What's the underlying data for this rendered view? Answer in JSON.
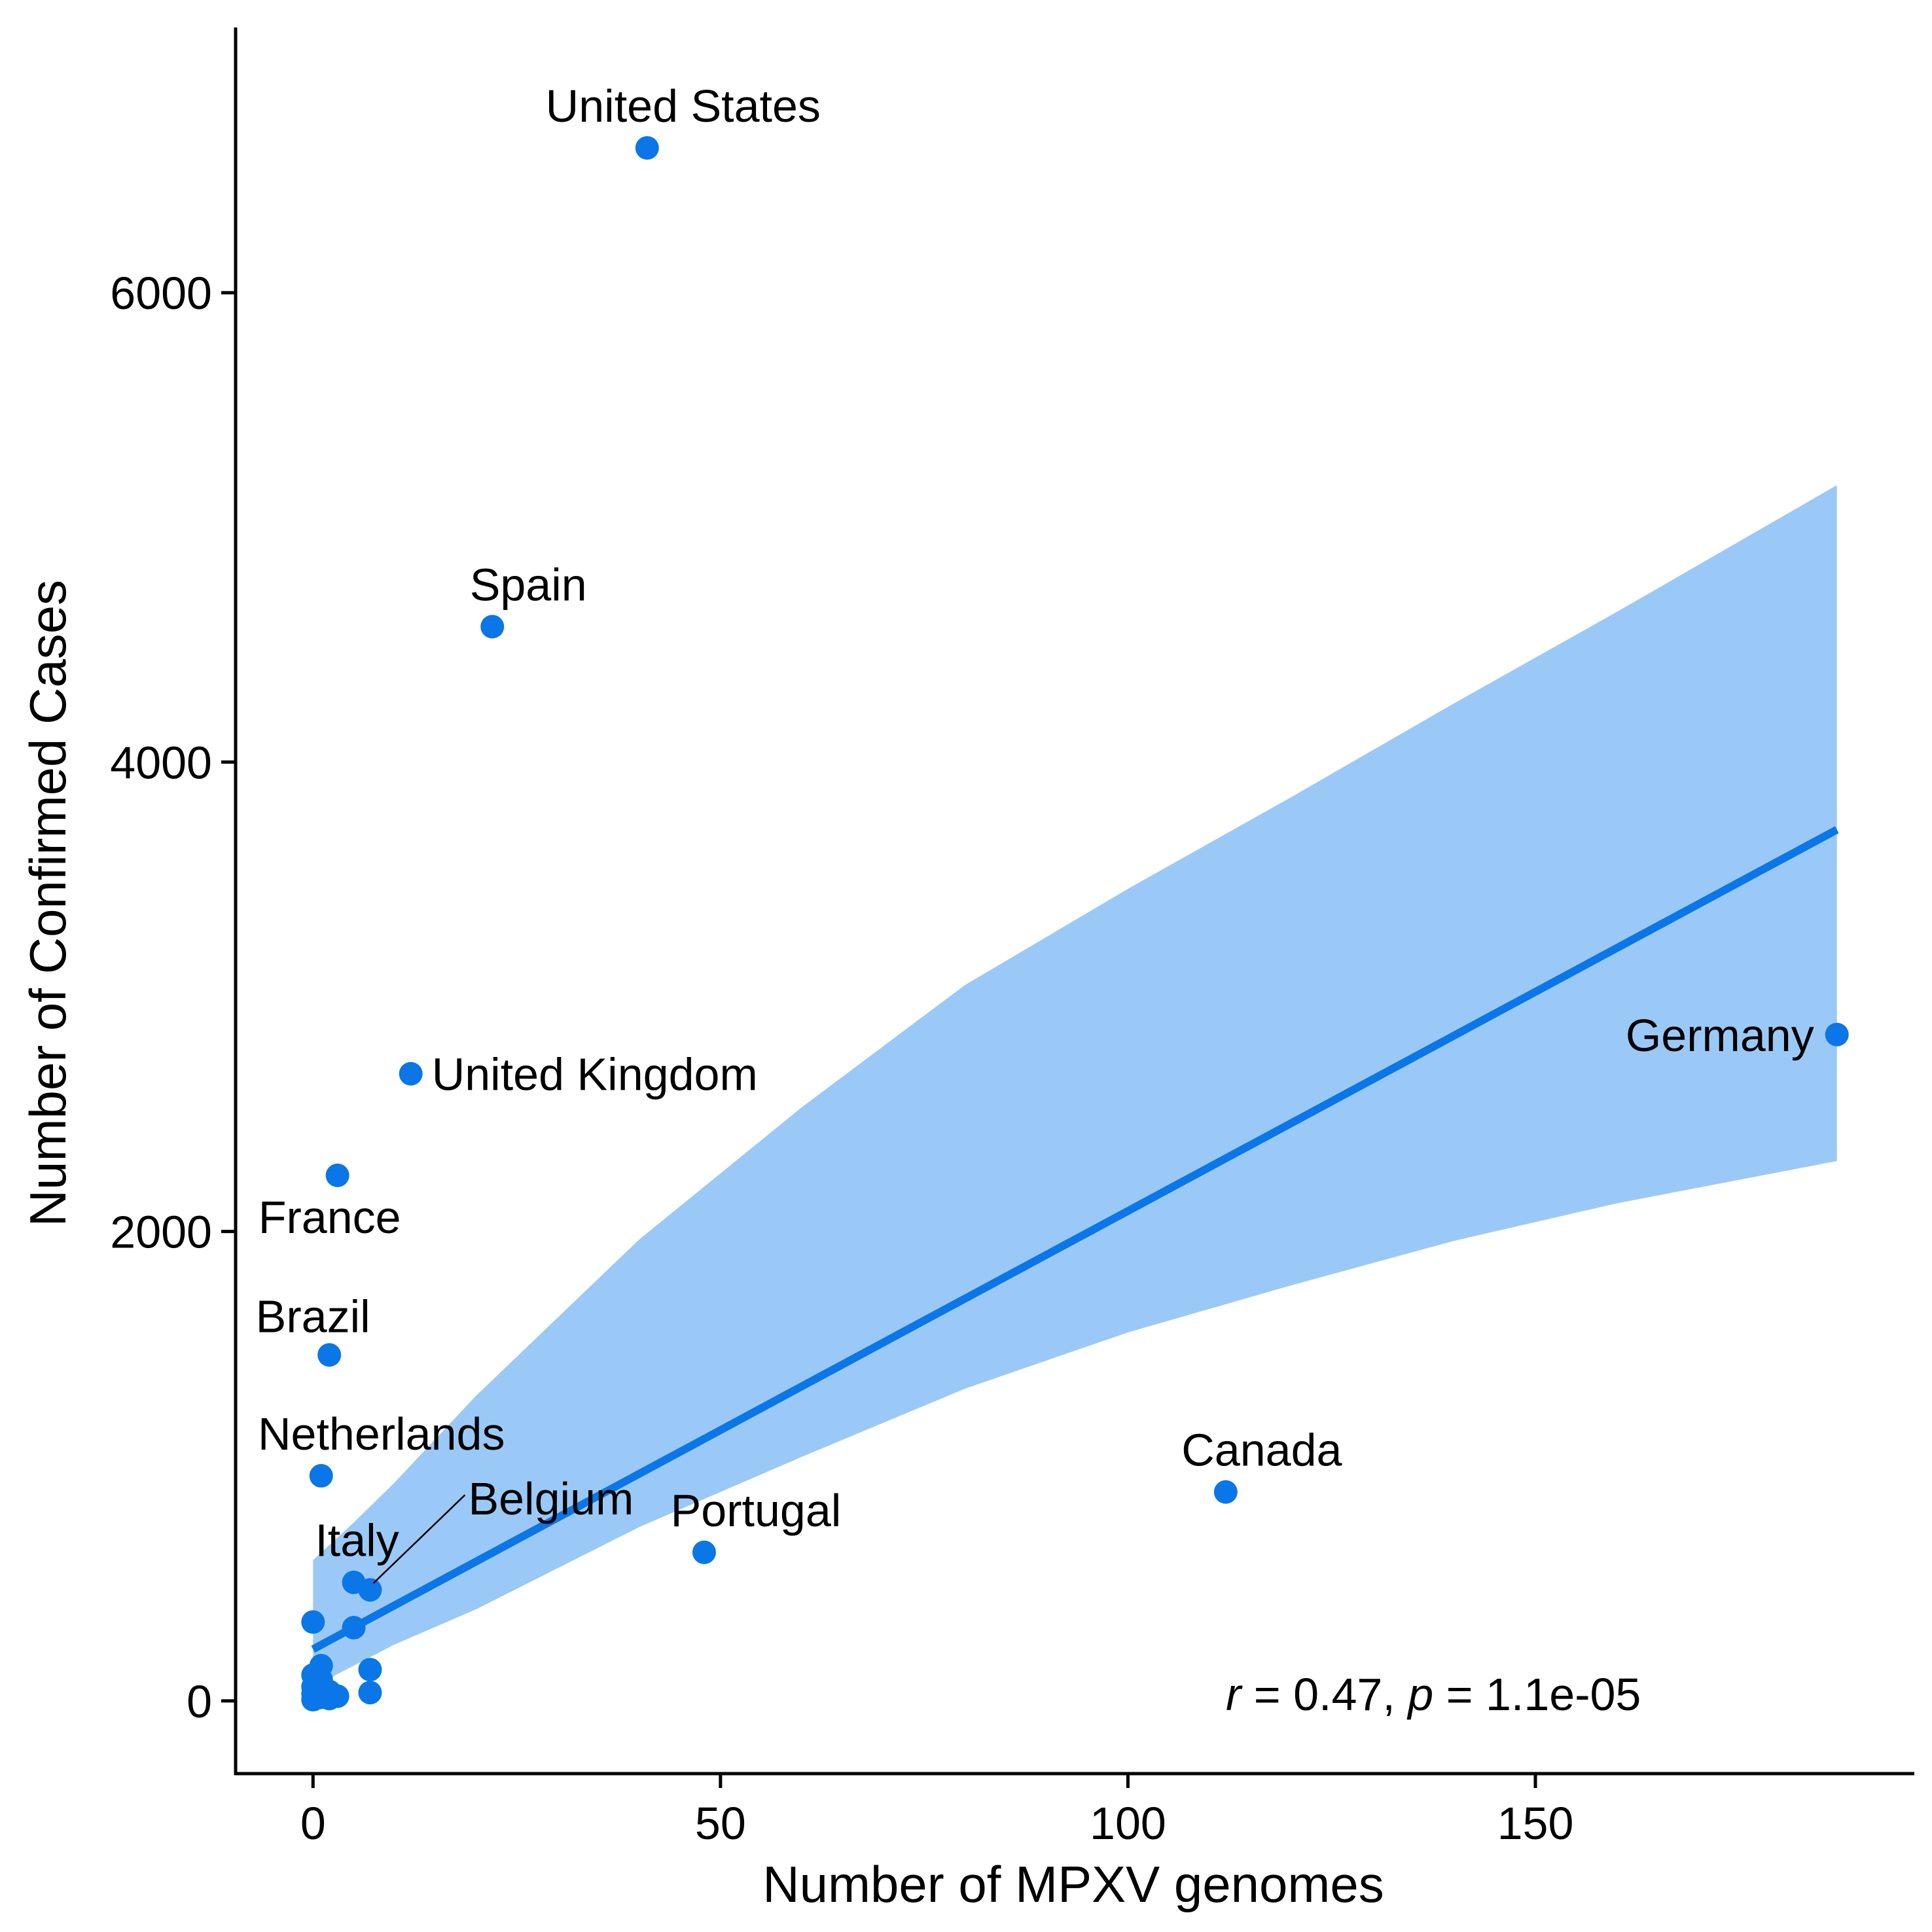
{
  "chart_data": {
    "type": "scatter",
    "xlabel": "Number of MPXV genomes",
    "ylabel": "Number of Confirmed Cases",
    "xlim": [
      -9.5,
      196.5
    ],
    "ylim": [
      -310,
      7130
    ],
    "x_ticks": [
      0,
      50,
      100,
      150
    ],
    "y_ticks": [
      0,
      2000,
      4000,
      6000
    ],
    "point_color": "#0a76e8",
    "line_color": "#0a76e8",
    "band_color": "#9bc9f7",
    "grid": false,
    "points": [
      {
        "label": "United States",
        "x": 41,
        "y": 6617
      },
      {
        "label": "Spain",
        "x": 22,
        "y": 4577
      },
      {
        "label": "United Kingdom",
        "x": 12,
        "y": 2672
      },
      {
        "label": "France",
        "x": 3,
        "y": 2239
      },
      {
        "label": "Germany",
        "x": 187,
        "y": 2839
      },
      {
        "label": "Brazil",
        "x": 2,
        "y": 1474
      },
      {
        "label": "Netherlands",
        "x": 1,
        "y": 959
      },
      {
        "label": "Canada",
        "x": 112,
        "y": 890
      },
      {
        "label": "Portugal",
        "x": 48,
        "y": 633
      },
      {
        "label": "Belgium",
        "x": 7,
        "y": 473
      },
      {
        "label": "Italy",
        "x": 5,
        "y": 505
      },
      {
        "x": 0,
        "y": 336
      },
      {
        "x": 5,
        "y": 312
      },
      {
        "x": 7,
        "y": 133
      },
      {
        "x": 1,
        "y": 150
      },
      {
        "x": 1,
        "y": 90
      },
      {
        "x": 0,
        "y": 110
      },
      {
        "x": 0,
        "y": 60
      },
      {
        "x": 0,
        "y": 30
      },
      {
        "x": 0,
        "y": 5
      },
      {
        "x": 1,
        "y": 15
      },
      {
        "x": 2,
        "y": 10
      },
      {
        "x": 2,
        "y": 40
      },
      {
        "x": 3,
        "y": 20
      },
      {
        "x": 7,
        "y": 35
      }
    ],
    "regression": {
      "x_start": 0,
      "x_end": 187,
      "y_start": 220,
      "y_end": 3712
    },
    "confidence_band": {
      "x": [
        0,
        5,
        10,
        20,
        40,
        60,
        80,
        100,
        120,
        140,
        160,
        187
      ],
      "upper": [
        600,
        760,
        930,
        1300,
        1965,
        2530,
        3050,
        3460,
        3850,
        4250,
        4640,
        5180
      ],
      "lower": [
        60,
        150,
        240,
        390,
        740,
        1040,
        1330,
        1570,
        1770,
        1960,
        2120,
        2300
      ]
    },
    "annotation": {
      "r_symbol": "r",
      "r_text": " = 0.47, ",
      "p_symbol": "p",
      "p_text": " = 1.1e-05"
    }
  }
}
